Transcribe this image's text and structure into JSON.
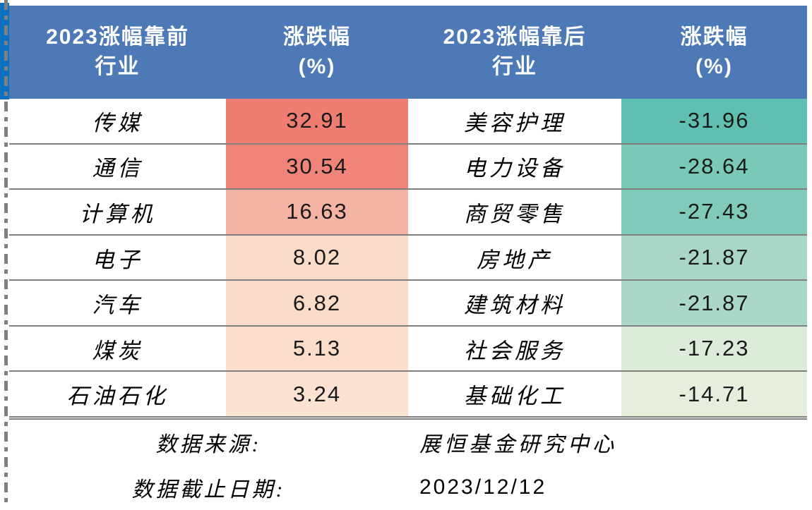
{
  "colors": {
    "header_bg": "#4E79B7",
    "accent_bar_blue": "#0D6FC1",
    "grid_line_gray": "#7F7F7F",
    "header_text": "#FFFFFF",
    "body_text": "#1A1A1A"
  },
  "header": {
    "columns": [
      {
        "line1": "2023涨幅靠前",
        "line2": "行业"
      },
      {
        "line1": "涨跌幅",
        "line2": "(%)"
      },
      {
        "line1": "2023涨幅靠后",
        "line2": "行业"
      },
      {
        "line1": "涨跌幅",
        "line2": "(%)"
      }
    ]
  },
  "rows": [
    {
      "gainer": "传媒",
      "gain": "32.91",
      "gain_bg": "#EF7D72",
      "loser": "美容护理",
      "loss": "-31.96",
      "loss_bg": "#5FC0B1"
    },
    {
      "gainer": "通信",
      "gain": "30.54",
      "gain_bg": "#F08478",
      "loser": "电力设备",
      "loss": "-28.64",
      "loss_bg": "#7AC8B8"
    },
    {
      "gainer": "计算机",
      "gain": "16.63",
      "gain_bg": "#F5B3A3",
      "loser": "商贸零售",
      "loss": "-27.43",
      "loss_bg": "#80CABA"
    },
    {
      "gainer": "电子",
      "gain": "8.02",
      "gain_bg": "#F9DBC9",
      "loser": "房地产",
      "loss": "-21.87",
      "loss_bg": "#A8D7C7"
    },
    {
      "gainer": "汽车",
      "gain": "6.82",
      "gain_bg": "#F9DBC9",
      "loser": "建筑材料",
      "loss": "-21.87",
      "loss_bg": "#A9D8C8"
    },
    {
      "gainer": "煤炭",
      "gain": "5.13",
      "gain_bg": "#FADDCB",
      "loser": "社会服务",
      "loss": "-17.23",
      "loss_bg": "#DCEBDA"
    },
    {
      "gainer": "石油石化",
      "gain": "3.24",
      "gain_bg": "#FBE2D2",
      "loser": "基础化工",
      "loss": "-14.71",
      "loss_bg": "#E5EFDC"
    }
  ],
  "footer": {
    "source_label": "数据来源:",
    "source_value": "展恒基金研究中心",
    "date_label": "数据截止日期:",
    "date_value": "2023/12/12"
  },
  "chart_data": {
    "type": "table",
    "columns": [
      "2023涨幅靠前行业",
      "涨跌幅(%)",
      "2023涨幅靠后行业",
      "涨跌幅(%)"
    ],
    "gainers": {
      "categories": [
        "传媒",
        "通信",
        "计算机",
        "电子",
        "汽车",
        "煤炭",
        "石油石化"
      ],
      "values": [
        32.91,
        30.54,
        16.63,
        8.02,
        6.82,
        5.13,
        3.24
      ]
    },
    "losers": {
      "categories": [
        "美容护理",
        "电力设备",
        "商贸零售",
        "房地产",
        "建筑材料",
        "社会服务",
        "基础化工"
      ],
      "values": [
        -31.96,
        -28.64,
        -27.43,
        -21.87,
        -21.87,
        -17.23,
        -14.71
      ]
    },
    "source": "展恒基金研究中心",
    "data_cutoff_date": "2023/12/12",
    "layout": "positive values shaded red gradient by magnitude, negative values shaded green gradient by magnitude"
  }
}
